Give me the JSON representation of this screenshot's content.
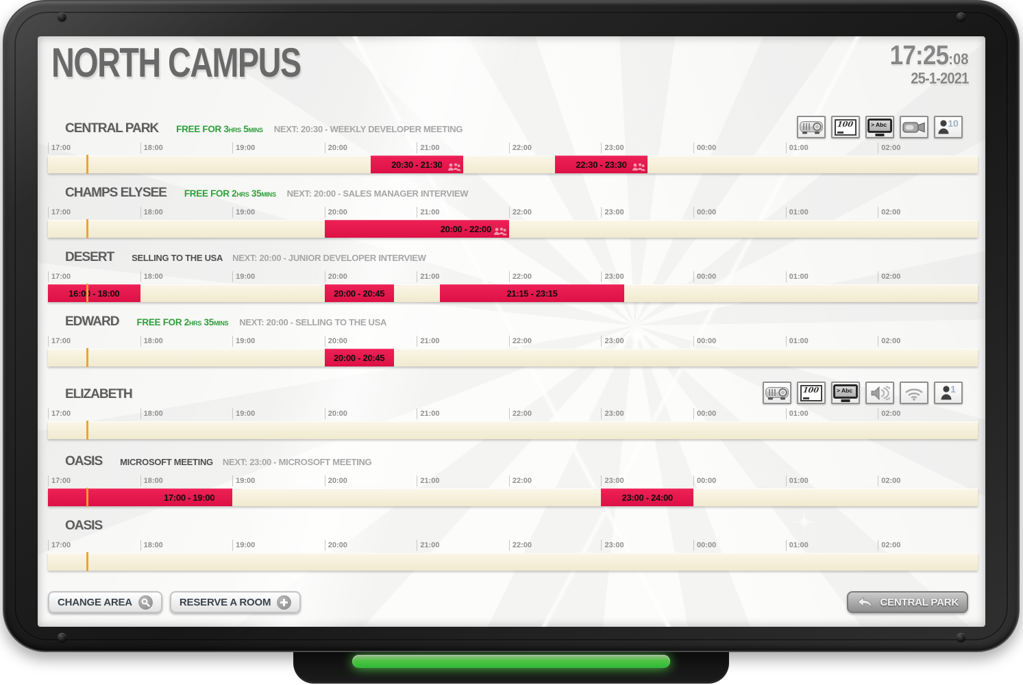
{
  "header": {
    "title": "NORTH CAMPUS",
    "clock_time": "17:25",
    "clock_seconds": ":08",
    "date": "25-1-2021"
  },
  "timeline": {
    "start_hour": "17:00",
    "hours": [
      "17:00",
      "18:00",
      "19:00",
      "20:00",
      "21:00",
      "22:00",
      "23:00",
      "00:00",
      "01:00",
      "02:00"
    ],
    "total_minutes": 605,
    "current_minute": 25
  },
  "colors": {
    "slot_red": "#dc1145",
    "slot_red_hi": "#ee2156",
    "bar_cream": "#f1ead0",
    "bar_cream_hi": "#fbf6e7",
    "now_line": "#efa32b",
    "free_green": "#2f9e39",
    "led_green": "#52e24b"
  },
  "rooms": [
    {
      "name": "CENTRAL PARK",
      "free": "FREE FOR 3HRS 5MINS",
      "next": "NEXT: 20:30 - WEEKLY DEVELOPER MEETING",
      "icons": [
        {
          "name": "projector"
        },
        {
          "name": "whiteboard",
          "value": "100"
        },
        {
          "name": "screen",
          "value": "> Abc"
        },
        {
          "name": "camera"
        },
        {
          "name": "capacity",
          "value": "10"
        }
      ],
      "slots": [
        {
          "label": "20:30 - 21:30",
          "start": 210,
          "duration": 60,
          "people": true
        },
        {
          "label": "22:30 - 23:30",
          "start": 330,
          "duration": 60,
          "people": true
        }
      ]
    },
    {
      "name": "CHAMPS ELYSEE",
      "free": "FREE FOR 2HRS 35MINS",
      "next": "NEXT: 20:00 - SALES MANAGER INTERVIEW",
      "icons": [],
      "slots": [
        {
          "label": "20:00 - 22:00",
          "start": 180,
          "duration": 120,
          "people": true,
          "align": "right"
        }
      ]
    },
    {
      "name": "DESERT",
      "current": "SELLING TO THE USA",
      "next": "NEXT: 20:00 - JUNIOR DEVELOPER INTERVIEW",
      "icons": [],
      "slots": [
        {
          "label": "16:00 - 18:00",
          "start": 0,
          "duration": 60
        },
        {
          "label": "20:00 - 20:45",
          "start": 180,
          "duration": 45
        },
        {
          "label": "21:15 - 23:15",
          "start": 255,
          "duration": 120
        }
      ]
    },
    {
      "name": "EDWARD",
      "free": "FREE FOR 2HRS 35MINS",
      "next": "NEXT: 20:00 - SELLING TO THE USA",
      "icons": [],
      "slots": [
        {
          "label": "20:00 - 20:45",
          "start": 180,
          "duration": 45
        }
      ]
    },
    {
      "name": "ELIZABETH",
      "icons": [
        {
          "name": "projector"
        },
        {
          "name": "whiteboard",
          "value": "100"
        },
        {
          "name": "screen",
          "value": "> Abc"
        },
        {
          "name": "speaker"
        },
        {
          "name": "wifi"
        },
        {
          "name": "capacity",
          "value": "1"
        }
      ],
      "slots": []
    },
    {
      "name": "OASIS",
      "current": "MICROSOFT MEETING",
      "next": "NEXT: 23:00 - MICROSOFT MEETING",
      "icons": [],
      "slots": [
        {
          "label": "17:00 - 19:00",
          "start": 0,
          "duration": 120,
          "align": "right"
        },
        {
          "label": "23:00 - 24:00",
          "start": 360,
          "duration": 60
        }
      ]
    },
    {
      "name": "OASIS",
      "icons": [],
      "slots": []
    }
  ],
  "footer": {
    "change_area": "CHANGE AREA",
    "reserve_room": "RESERVE A ROOM",
    "back_room": "CENTRAL PARK"
  }
}
